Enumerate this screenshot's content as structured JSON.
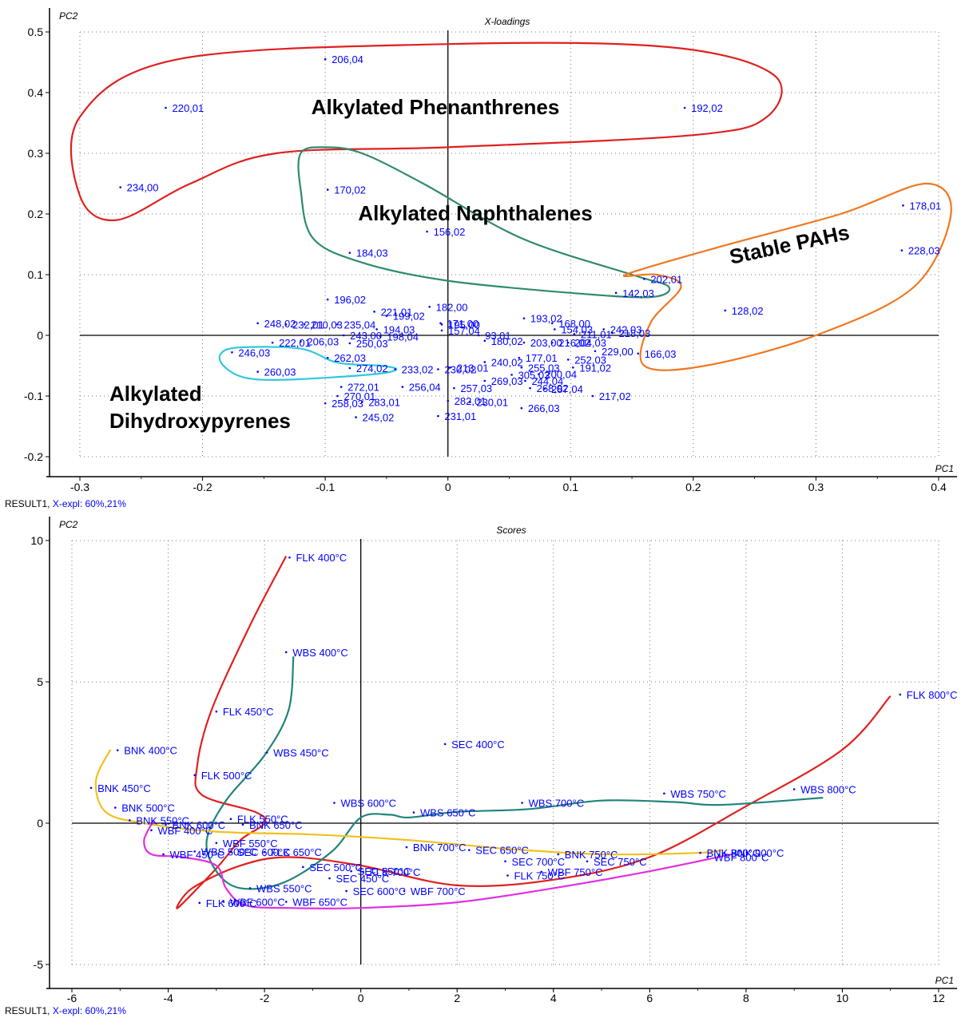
{
  "chart_data": [
    {
      "type": "scatter",
      "title": "X-loadings",
      "xlabel": "PC1",
      "ylabel": "PC2",
      "xlim": [
        -0.33,
        0.41
      ],
      "ylim": [
        -0.23,
        0.51
      ],
      "xticks": [
        "-0.3",
        "-0.2",
        "-0.1",
        "0",
        "0.1",
        "0.2",
        "0.3",
        "0.4"
      ],
      "xtick_values": [
        -0.3,
        -0.2,
        -0.1,
        0,
        0.1,
        0.2,
        0.3,
        0.4
      ],
      "yticks": [
        "0.5",
        "0.4",
        "0.3",
        "0.2",
        "0.1",
        "0",
        "-0.1",
        "-0.2"
      ],
      "ytick_values": [
        0.5,
        0.4,
        0.3,
        0.2,
        0.1,
        0,
        -0.1,
        -0.2
      ],
      "grid": "dotted",
      "footer": "RESULT1,",
      "footer_expl": "X-expl: 60%,21%",
      "point_color": "#0000ff",
      "points": [
        {
          "label": "206,04",
          "x": -0.1,
          "y": 0.455
        },
        {
          "label": "220,01",
          "x": -0.23,
          "y": 0.375
        },
        {
          "label": "192,02",
          "x": 0.193,
          "y": 0.375
        },
        {
          "label": "234,00",
          "x": -0.267,
          "y": 0.244
        },
        {
          "label": "170,02",
          "x": -0.098,
          "y": 0.24
        },
        {
          "label": "156,02",
          "x": -0.017,
          "y": 0.171
        },
        {
          "label": "184,03",
          "x": -0.08,
          "y": 0.136
        },
        {
          "label": "178,01",
          "x": 0.371,
          "y": 0.214
        },
        {
          "label": "228,03",
          "x": 0.37,
          "y": 0.14
        },
        {
          "label": "202,01",
          "x": 0.16,
          "y": 0.093
        },
        {
          "label": "142,03",
          "x": 0.137,
          "y": 0.07
        },
        {
          "label": "128,02",
          "x": 0.226,
          "y": 0.041
        },
        {
          "label": "196,02",
          "x": -0.098,
          "y": 0.059
        },
        {
          "label": "182,00",
          "x": -0.015,
          "y": 0.047
        },
        {
          "label": "221,01",
          "x": -0.06,
          "y": 0.039
        },
        {
          "label": "193,02",
          "x": 0.062,
          "y": 0.028
        },
        {
          "label": "168,00",
          "x": 0.085,
          "y": 0.02
        },
        {
          "label": "199,02",
          "x": -0.05,
          "y": 0.032
        },
        {
          "label": "171,00",
          "x": -0.006,
          "y": 0.02
        },
        {
          "label": "248,02",
          "x": -0.155,
          "y": 0.02
        },
        {
          "label": "232,01",
          "x": -0.132,
          "y": 0.018
        },
        {
          "label": "210,03",
          "x": -0.117,
          "y": 0.018
        },
        {
          "label": "235,04",
          "x": -0.09,
          "y": 0.018
        },
        {
          "label": "194,03",
          "x": -0.058,
          "y": 0.01
        },
        {
          "label": "195,00",
          "x": -0.005,
          "y": 0.018
        },
        {
          "label": "157,04",
          "x": -0.005,
          "y": 0.008
        },
        {
          "label": "154,03",
          "x": 0.087,
          "y": 0.01
        },
        {
          "label": "242,03",
          "x": 0.127,
          "y": 0.01
        },
        {
          "label": "218,03",
          "x": 0.134,
          "y": 0.004
        },
        {
          "label": "243,00",
          "x": -0.085,
          "y": 0.0
        },
        {
          "label": "198,04",
          "x": -0.055,
          "y": -0.002
        },
        {
          "label": "93,01",
          "x": 0.025,
          "y": 0.0
        },
        {
          "label": "211,01",
          "x": 0.103,
          "y": 0.002
        },
        {
          "label": "222,01",
          "x": -0.143,
          "y": -0.012
        },
        {
          "label": "206,03",
          "x": -0.12,
          "y": -0.01
        },
        {
          "label": "250,03",
          "x": -0.08,
          "y": -0.013
        },
        {
          "label": "180,02",
          "x": 0.03,
          "y": -0.009
        },
        {
          "label": "203,00",
          "x": 0.062,
          "y": -0.012
        },
        {
          "label": "216,02",
          "x": 0.085,
          "y": -0.012
        },
        {
          "label": "204,03",
          "x": 0.098,
          "y": -0.012
        },
        {
          "label": "229,00",
          "x": 0.12,
          "y": -0.026
        },
        {
          "label": "166,03",
          "x": 0.155,
          "y": -0.03
        },
        {
          "label": "246,03",
          "x": -0.176,
          "y": -0.028
        },
        {
          "label": "262,03",
          "x": -0.098,
          "y": -0.037
        },
        {
          "label": "177,01",
          "x": 0.058,
          "y": -0.037
        },
        {
          "label": "252,03",
          "x": 0.098,
          "y": -0.04
        },
        {
          "label": "240,02",
          "x": 0.03,
          "y": -0.044
        },
        {
          "label": "213,01",
          "x": 0.002,
          "y": -0.053
        },
        {
          "label": "191,02",
          "x": 0.102,
          "y": -0.053
        },
        {
          "label": "274,02",
          "x": -0.08,
          "y": -0.054
        },
        {
          "label": "233,02",
          "x": -0.043,
          "y": -0.056
        },
        {
          "label": "230,02",
          "x": -0.008,
          "y": -0.056
        },
        {
          "label": "255,03",
          "x": 0.06,
          "y": -0.053
        },
        {
          "label": "260,03",
          "x": -0.155,
          "y": -0.06
        },
        {
          "label": "305,03",
          "x": 0.052,
          "y": -0.065
        },
        {
          "label": "200,04",
          "x": 0.074,
          "y": -0.064
        },
        {
          "label": "269,03",
          "x": 0.03,
          "y": -0.075
        },
        {
          "label": "244,04",
          "x": 0.063,
          "y": -0.075
        },
        {
          "label": "272,01",
          "x": -0.087,
          "y": -0.085
        },
        {
          "label": "256,04",
          "x": -0.037,
          "y": -0.085
        },
        {
          "label": "257,03",
          "x": 0.005,
          "y": -0.087
        },
        {
          "label": "268,02",
          "x": 0.067,
          "y": -0.087
        },
        {
          "label": "287,04",
          "x": 0.079,
          "y": -0.088
        },
        {
          "label": "217,02",
          "x": 0.118,
          "y": -0.1
        },
        {
          "label": "270,01",
          "x": -0.09,
          "y": -0.1
        },
        {
          "label": "258,03",
          "x": -0.1,
          "y": -0.112
        },
        {
          "label": "283,01",
          "x": -0.07,
          "y": -0.11
        },
        {
          "label": "282,01",
          "x": 0.0,
          "y": -0.108
        },
        {
          "label": "230,01",
          "x": 0.018,
          "y": -0.11
        },
        {
          "label": "266,03",
          "x": 0.06,
          "y": -0.12
        },
        {
          "label": "245,02",
          "x": -0.075,
          "y": -0.135
        },
        {
          "label": "231,01",
          "x": -0.008,
          "y": -0.133
        }
      ],
      "annotations": [
        {
          "text": "Alkylated Phenanthrenes",
          "color": "#000000"
        },
        {
          "text": "Alkylated Naphthalenes",
          "color": "#000000"
        },
        {
          "text": "Stable PAHs",
          "color": "#000000"
        },
        {
          "text": "Alkylated",
          "color": "#000000"
        },
        {
          "text": "Dihydroxypyrenes",
          "color": "#000000"
        }
      ],
      "group_colors": {
        "phenanthrenes": "#e02020",
        "naphthalenes": "#2e8b6a",
        "stable_pahs": "#f07820",
        "dihydroxypyrenes": "#30c8e0"
      }
    },
    {
      "type": "scatter",
      "title": "Scores",
      "xlabel": "PC1",
      "ylabel": "PC2",
      "xlim": [
        -6.4,
        12.4
      ],
      "ylim": [
        -5.9,
        10.4
      ],
      "xticks": [
        "-6",
        "-4",
        "-2",
        "0",
        "2",
        "4",
        "6",
        "8",
        "10",
        "12"
      ],
      "xtick_values": [
        -6,
        -4,
        -2,
        0,
        2,
        4,
        6,
        8,
        10,
        12
      ],
      "yticks": [
        "10",
        "5",
        "0",
        "-5"
      ],
      "ytick_values": [
        10,
        5,
        0,
        -5
      ],
      "grid": "dotted",
      "footer": "RESULT1,",
      "footer_expl": "X-expl: 60%,21%",
      "point_color": "#0000ff",
      "points": [
        {
          "label": "FLK 400°C",
          "x": -1.48,
          "y": 9.4
        },
        {
          "label": "WBS  400°C",
          "x": -1.55,
          "y": 6.05
        },
        {
          "label": "FLK 800°C",
          "x": 11.2,
          "y": 4.55
        },
        {
          "label": "FLK 450°C",
          "x": -3.0,
          "y": 3.95
        },
        {
          "label": "BNK 400°C",
          "x": -5.05,
          "y": 2.58
        },
        {
          "label": "SEC  400°C",
          "x": 1.75,
          "y": 2.8
        },
        {
          "label": "WBS 450°C",
          "x": -1.95,
          "y": 2.5
        },
        {
          "label": "FLK 500°C",
          "x": -3.45,
          "y": 1.7
        },
        {
          "label": "BNK 450°C",
          "x": -5.6,
          "y": 1.25
        },
        {
          "label": "WBS 800°C",
          "x": 9.0,
          "y": 1.2
        },
        {
          "label": "WBS 750°C",
          "x": 6.3,
          "y": 1.05
        },
        {
          "label": "WBS 700°C",
          "x": 3.35,
          "y": 0.72
        },
        {
          "label": "WBS 600°C",
          "x": -0.55,
          "y": 0.72
        },
        {
          "label": "BNK 500°C",
          "x": -5.1,
          "y": 0.55
        },
        {
          "label": "WBS 650°C",
          "x": 1.1,
          "y": 0.38
        },
        {
          "label": "FLK 550°C",
          "x": -2.7,
          "y": 0.15
        },
        {
          "label": "BNK 550°C",
          "x": -4.8,
          "y": 0.1
        },
        {
          "label": "BNK 600°C",
          "x": -4.05,
          "y": -0.05
        },
        {
          "label": "BNK 650°C",
          "x": -2.45,
          "y": -0.05
        },
        {
          "label": "WBF 400°C",
          "x": -4.35,
          "y": -0.25
        },
        {
          "label": "WBF 550°C",
          "x": -3.0,
          "y": -0.7
        },
        {
          "label": "BNK 700°C",
          "x": 0.95,
          "y": -0.85
        },
        {
          "label": "SEC 650°C",
          "x": 2.25,
          "y": -0.95
        },
        {
          "label": "WBS 500°C",
          "x": -3.45,
          "y": -1.0
        },
        {
          "label": "SEC 600°C",
          "x": -2.7,
          "y": -1.02
        },
        {
          "label": "FLK 650°C",
          "x": -2.0,
          "y": -1.02
        },
        {
          "label": "BNK 750°C",
          "x": 4.1,
          "y": -1.1
        },
        {
          "label": "BNK 800°C",
          "x": 7.05,
          "y": -1.05
        },
        {
          "label": "BNK 900°C",
          "x": 7.55,
          "y": -1.05
        },
        {
          "label": "WBF 450°C",
          "x": -4.1,
          "y": -1.1
        },
        {
          "label": "WBF 800°C",
          "x": 7.2,
          "y": -1.2
        },
        {
          "label": "SEC 700°C",
          "x": 3.0,
          "y": -1.35
        },
        {
          "label": "SEC 750°C",
          "x": 4.7,
          "y": -1.35
        },
        {
          "label": "SEC 500°C",
          "x": -1.2,
          "y": -1.55
        },
        {
          "label": "SEC 550°C",
          "x": -0.2,
          "y": -1.7
        },
        {
          "label": "FLK 700°C",
          "x": 0.05,
          "y": -1.72
        },
        {
          "label": "WBF 750°C",
          "x": 3.75,
          "y": -1.72
        },
        {
          "label": "FLK 750°C",
          "x": 3.05,
          "y": -1.85
        },
        {
          "label": "SEC 450°C",
          "x": -0.65,
          "y": -1.95
        },
        {
          "label": "WBS 550°C",
          "x": -2.3,
          "y": -2.3
        },
        {
          "label": "SEC 600°C",
          "x": -0.3,
          "y": -2.4
        },
        {
          "label": "WBF 700°C",
          "x": 0.9,
          "y": -2.4
        },
        {
          "label": "WBF 600°C",
          "x": -2.85,
          "y": -2.78
        },
        {
          "label": "WBF 650°C",
          "x": -1.55,
          "y": -2.78
        },
        {
          "label": "FLK 600°C",
          "x": -3.35,
          "y": -2.82
        }
      ],
      "group_colors": {
        "FLK": "#e02020",
        "WBS": "#20847a",
        "BNK": "#f0c020",
        "WBF": "#e030e0"
      }
    }
  ]
}
